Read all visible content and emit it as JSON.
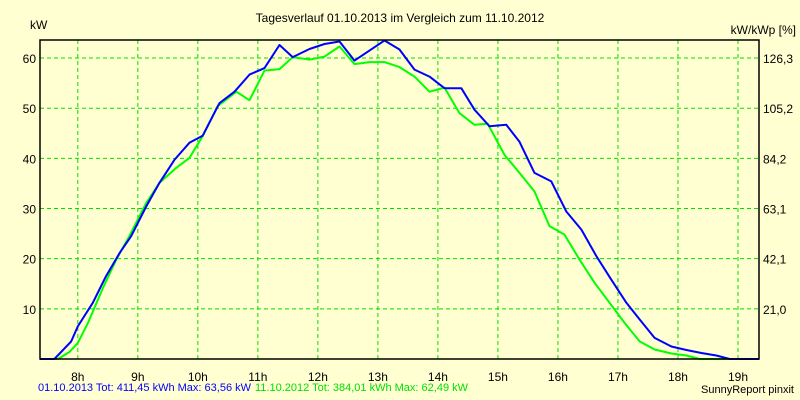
{
  "chart_data": {
    "type": "line",
    "title": "Tagesverlauf 01.10.2013 im Vergleich zum 11.10.2012",
    "ylabel": "kW",
    "y2label": "kW/kWp [%]",
    "xlim": [
      7.37,
      19.35
    ],
    "ylim": [
      0,
      63.6
    ],
    "grid": true,
    "x_ticks": [
      {
        "value": 8,
        "label": "8h"
      },
      {
        "value": 9,
        "label": "9h"
      },
      {
        "value": 10,
        "label": "10h"
      },
      {
        "value": 11,
        "label": "11h"
      },
      {
        "value": 12,
        "label": "12h"
      },
      {
        "value": 13,
        "label": "13h"
      },
      {
        "value": 14,
        "label": "14h"
      },
      {
        "value": 15,
        "label": "15h"
      },
      {
        "value": 16,
        "label": "16h"
      },
      {
        "value": 17,
        "label": "17h"
      },
      {
        "value": 18,
        "label": "18h"
      },
      {
        "value": 19,
        "label": "19h"
      }
    ],
    "y_ticks": [
      {
        "value": 10,
        "label": "10"
      },
      {
        "value": 20,
        "label": "20"
      },
      {
        "value": 30,
        "label": "30"
      },
      {
        "value": 40,
        "label": "40"
      },
      {
        "value": 50,
        "label": "50"
      },
      {
        "value": 60,
        "label": "60"
      }
    ],
    "y2_ticks": [
      {
        "value": 10,
        "label": "21,0"
      },
      {
        "value": 20,
        "label": "42,1"
      },
      {
        "value": 30,
        "label": "63,1"
      },
      {
        "value": 40,
        "label": "84,2"
      },
      {
        "value": 50,
        "label": "105,2"
      },
      {
        "value": 60,
        "label": "126,3"
      }
    ],
    "series": [
      {
        "name": "01.10.2013",
        "color": "#0000FF",
        "points": [
          [
            7.37,
            0
          ],
          [
            7.61,
            0
          ],
          [
            7.89,
            3.5
          ],
          [
            8.0,
            6.5
          ],
          [
            8.25,
            11.2
          ],
          [
            8.47,
            16.5
          ],
          [
            8.7,
            21.2
          ],
          [
            8.89,
            24.5
          ],
          [
            9.14,
            30.4
          ],
          [
            9.36,
            35.1
          ],
          [
            9.61,
            39.7
          ],
          [
            9.86,
            43.1
          ],
          [
            10.08,
            44.5
          ],
          [
            10.36,
            51
          ],
          [
            10.61,
            53.3
          ],
          [
            10.86,
            56.7
          ],
          [
            11.11,
            58
          ],
          [
            11.36,
            62.6
          ],
          [
            11.58,
            60.2
          ],
          [
            11.86,
            61.8
          ],
          [
            12.11,
            62.8
          ],
          [
            12.36,
            63.3
          ],
          [
            12.61,
            59.5
          ],
          [
            13.11,
            63.5
          ],
          [
            13.36,
            61.7
          ],
          [
            13.61,
            57.7
          ],
          [
            13.86,
            56.3
          ],
          [
            14.11,
            54
          ],
          [
            14.39,
            54
          ],
          [
            14.61,
            49.7
          ],
          [
            14.86,
            46.4
          ],
          [
            15.14,
            46.7
          ],
          [
            15.36,
            43.3
          ],
          [
            15.61,
            37.1
          ],
          [
            15.89,
            35.4
          ],
          [
            16.14,
            29.4
          ],
          [
            16.39,
            25.8
          ],
          [
            16.64,
            20.5
          ],
          [
            16.89,
            15.8
          ],
          [
            17.14,
            11.2
          ],
          [
            17.36,
            7.9
          ],
          [
            17.61,
            4.2
          ],
          [
            17.89,
            2.5
          ],
          [
            18.14,
            1.8
          ],
          [
            18.39,
            1.2
          ],
          [
            18.64,
            0.7
          ],
          [
            18.86,
            0
          ],
          [
            19.35,
            0
          ]
        ]
      },
      {
        "name": "11.10.2012",
        "color": "#00FF00",
        "points": [
          [
            7.37,
            0
          ],
          [
            7.67,
            0
          ],
          [
            7.86,
            1.4
          ],
          [
            8.0,
            3.2
          ],
          [
            8.17,
            7.2
          ],
          [
            8.42,
            14.2
          ],
          [
            8.64,
            19.8
          ],
          [
            8.86,
            24.5
          ],
          [
            9.14,
            31.1
          ],
          [
            9.36,
            35.1
          ],
          [
            9.64,
            38.1
          ],
          [
            9.86,
            40.1
          ],
          [
            10.08,
            44.4
          ],
          [
            10.33,
            50.4
          ],
          [
            10.64,
            53.3
          ],
          [
            10.86,
            51.6
          ],
          [
            11.11,
            57.5
          ],
          [
            11.36,
            57.8
          ],
          [
            11.58,
            60.2
          ],
          [
            11.86,
            59.7
          ],
          [
            12.11,
            60.3
          ],
          [
            12.36,
            62.3
          ],
          [
            12.61,
            58.8
          ],
          [
            12.86,
            59.2
          ],
          [
            13.11,
            59.2
          ],
          [
            13.36,
            58.2
          ],
          [
            13.61,
            56.3
          ],
          [
            13.86,
            53.3
          ],
          [
            14.11,
            54.1
          ],
          [
            14.36,
            49
          ],
          [
            14.61,
            46.7
          ],
          [
            14.83,
            46.9
          ],
          [
            15.11,
            40.7
          ],
          [
            15.36,
            37.1
          ],
          [
            15.61,
            33.4
          ],
          [
            15.86,
            26.5
          ],
          [
            16.11,
            24.8
          ],
          [
            16.36,
            19.8
          ],
          [
            16.61,
            15.2
          ],
          [
            16.86,
            11.2
          ],
          [
            17.11,
            7.2
          ],
          [
            17.36,
            3.5
          ],
          [
            17.61,
            1.9
          ],
          [
            17.89,
            1.1
          ],
          [
            18.14,
            0.7
          ],
          [
            18.36,
            0
          ],
          [
            19.35,
            0
          ]
        ]
      }
    ]
  },
  "legend": {
    "series1": "01.10.2013 Tot: 411,45 kWh Max: 63,56 kW",
    "series2": "11.10.2012 Tot: 384,01 kWh Max: 62,49 kW"
  },
  "credit": "SunnyReport pinxit"
}
